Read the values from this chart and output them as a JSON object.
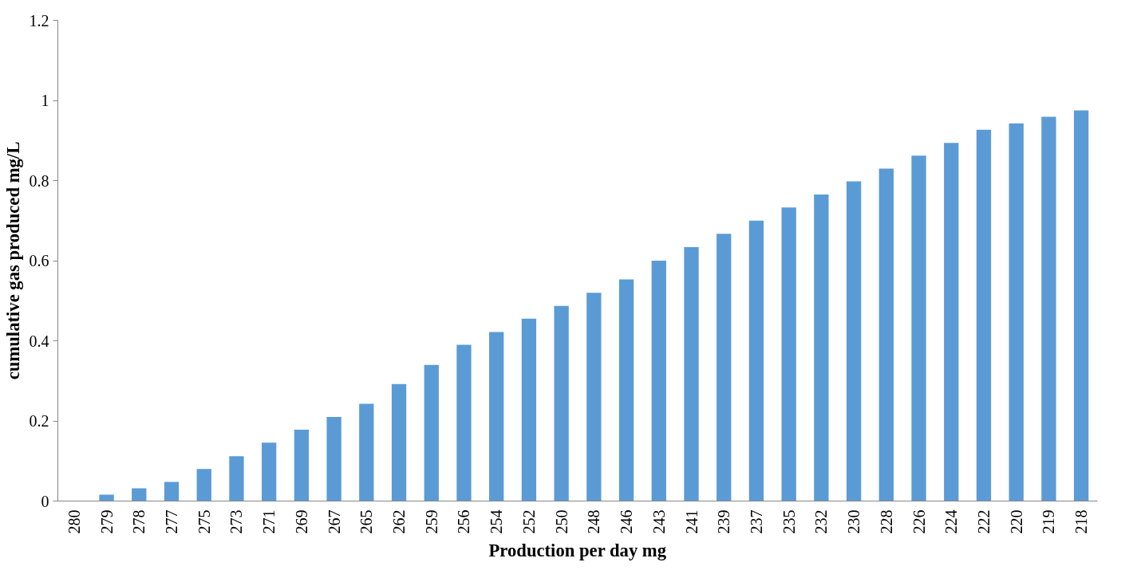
{
  "chart_data": {
    "type": "bar",
    "xlabel": "Production per day mg",
    "ylabel": "cumulative gas produced mg/L",
    "categories": [
      "280",
      "279",
      "278",
      "277",
      "275",
      "273",
      "271",
      "269",
      "267",
      "265",
      "262",
      "259",
      "256",
      "254",
      "252",
      "250",
      "248",
      "246",
      "243",
      "241",
      "239",
      "237",
      "235",
      "232",
      "230",
      "228",
      "226",
      "224",
      "222",
      "220",
      "219",
      "218"
    ],
    "values": [
      0,
      0.016,
      0.032,
      0.048,
      0.08,
      0.112,
      0.146,
      0.178,
      0.21,
      0.243,
      0.292,
      0.34,
      0.39,
      0.422,
      0.455,
      0.487,
      0.52,
      0.553,
      0.6,
      0.634,
      0.667,
      0.7,
      0.733,
      0.765,
      0.798,
      0.83,
      0.862,
      0.894,
      0.927,
      0.943,
      0.959,
      0.975
    ],
    "color": "#5b9bd5",
    "ylim": [
      0,
      1.2
    ],
    "yticks": [
      0,
      0.2,
      0.4,
      0.6,
      0.8,
      1,
      1.2
    ],
    "grid": false
  }
}
